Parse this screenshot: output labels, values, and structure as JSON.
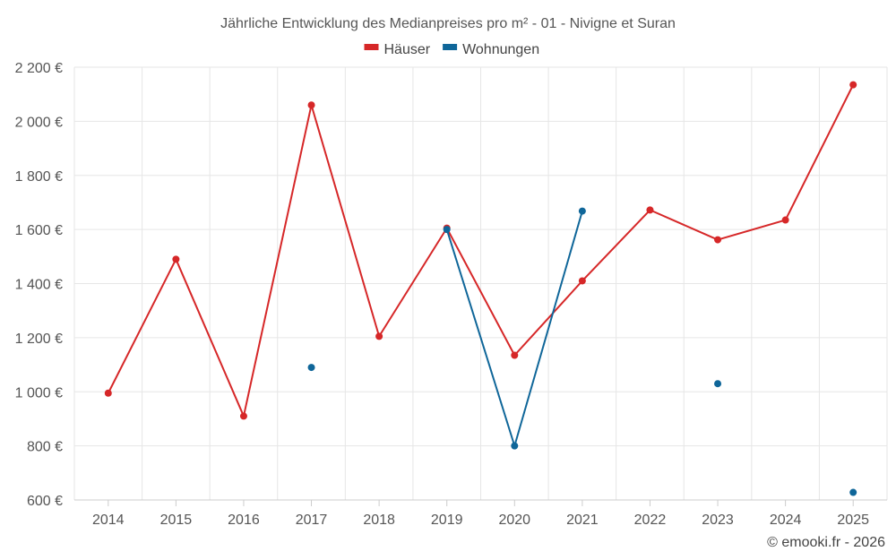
{
  "chart_data": {
    "type": "line",
    "title": "Jährliche Entwicklung des Medianpreises pro m² - 01 - Nivigne et Suran",
    "xlabel": "",
    "ylabel": "",
    "categories": [
      "2014",
      "2015",
      "2016",
      "2017",
      "2018",
      "2019",
      "2020",
      "2021",
      "2022",
      "2023",
      "2024",
      "2025"
    ],
    "ylim": [
      600,
      2200
    ],
    "yticks": [
      600,
      800,
      1000,
      1200,
      1400,
      1600,
      1800,
      2000,
      2200
    ],
    "ytick_labels": [
      "600 €",
      "800 €",
      "1 000 €",
      "1 200 €",
      "1 400 €",
      "1 600 €",
      "1 800 €",
      "2 000 €",
      "2 200 €"
    ],
    "grid": true,
    "legend_position": "top-center",
    "series": [
      {
        "name": "Häuser",
        "color": "#d62728",
        "values": [
          995,
          1490,
          910,
          2060,
          1205,
          1605,
          1135,
          1410,
          1672,
          1562,
          1635,
          2135
        ]
      },
      {
        "name": "Wohnungen",
        "color": "#0f6699",
        "values": [
          null,
          null,
          null,
          1090,
          null,
          1600,
          800,
          1668,
          null,
          1030,
          null,
          628
        ]
      }
    ]
  },
  "footer": {
    "credit": "© emooki.fr - 2026"
  }
}
